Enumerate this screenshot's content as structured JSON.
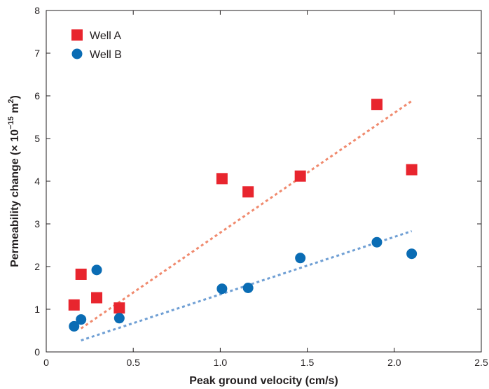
{
  "chart_data": {
    "type": "scatter",
    "xlabel": "Peak ground velocity (cm/s)",
    "ylabel": "Permeability change (× 10",
    "ylabel_exp1": "−15",
    "ylabel_mid": " m",
    "ylabel_exp2": "2",
    "ylabel_end": ")",
    "xlim": [
      0,
      2.5
    ],
    "ylim": [
      0,
      8
    ],
    "xticks": [
      0,
      0.5,
      1.0,
      1.5,
      2.0,
      2.5
    ],
    "xtick_labels": [
      "0",
      "0.5",
      "1.0",
      "1.5",
      "2.0",
      "2.5"
    ],
    "yticks": [
      0,
      1,
      2,
      3,
      4,
      5,
      6,
      7,
      8
    ],
    "ytick_labels": [
      "0",
      "1",
      "2",
      "3",
      "4",
      "5",
      "6",
      "7",
      "8"
    ],
    "grid": false,
    "legend_position": "top-left",
    "series": [
      {
        "name": "Well A",
        "marker": "square",
        "color": "#e8252e",
        "trend_color": "#f08a6e",
        "x": [
          0.16,
          0.2,
          0.29,
          0.42,
          1.01,
          1.16,
          1.46,
          1.9,
          2.1
        ],
        "y": [
          1.1,
          1.82,
          1.27,
          1.03,
          4.06,
          3.75,
          4.12,
          5.8,
          4.27
        ],
        "trend": {
          "x": [
            0.2,
            2.1
          ],
          "y": [
            0.55,
            5.88
          ]
        }
      },
      {
        "name": "Well B",
        "marker": "circle",
        "color": "#0a6cb4",
        "trend_color": "#6f9fd4",
        "x": [
          0.16,
          0.2,
          0.29,
          0.42,
          1.01,
          1.16,
          1.46,
          1.9,
          2.1
        ],
        "y": [
          0.6,
          0.76,
          1.92,
          0.79,
          1.48,
          1.5,
          2.2,
          2.57,
          2.3
        ],
        "trend": {
          "x": [
            0.2,
            2.1
          ],
          "y": [
            0.27,
            2.83
          ]
        }
      }
    ]
  }
}
